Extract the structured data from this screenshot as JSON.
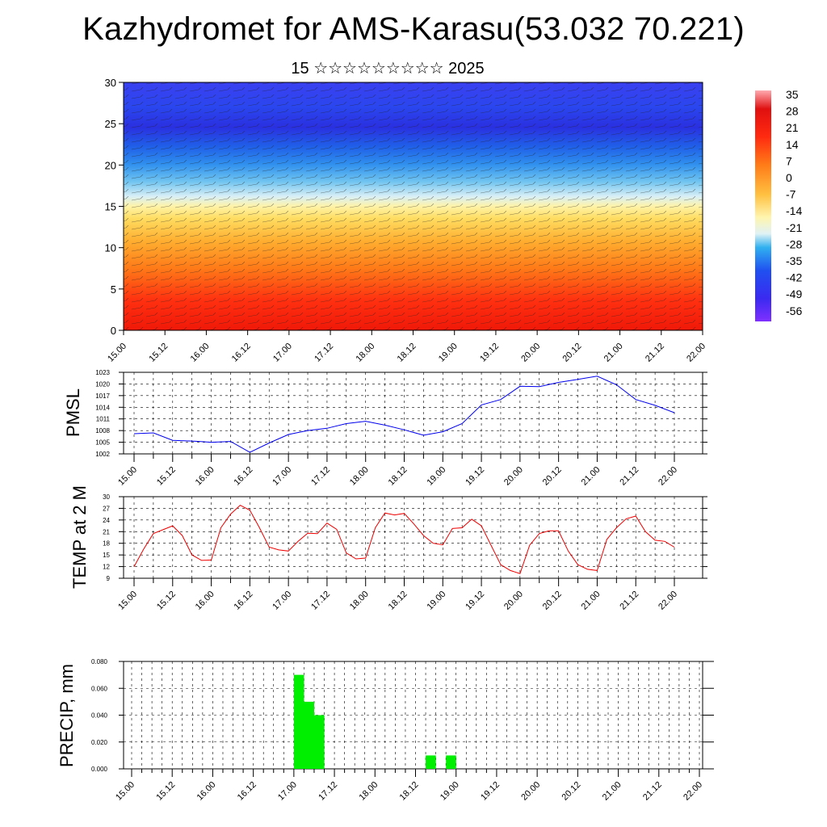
{
  "header": {
    "title": "Kazhydromet for AMS-Karasu(53.032 70.221)",
    "subtitle": "15 ☆☆☆☆☆☆☆☆☆ 2025"
  },
  "time_ticks": [
    "15.00",
    "15.12",
    "16.00",
    "16.12",
    "17.00",
    "17.12",
    "18.00",
    "18.12",
    "19.00",
    "19.12",
    "20.00",
    "20.12",
    "21.00",
    "21.12",
    "22.00"
  ],
  "colors": {
    "pmsl_line": "#0000ee",
    "temp_line": "#ee0000",
    "precip_bar": "#00ee00",
    "colorbar": [
      "#8030ff",
      "#3a2af0",
      "#2050f0",
      "#2a80f0",
      "#30b0f0",
      "#bfe6f5",
      "#fff5b0",
      "#ffe066",
      "#ffc040",
      "#ff9520",
      "#ff6010",
      "#ff2a10",
      "#e01010",
      "#ff9aa0"
    ]
  },
  "chart_data": [
    {
      "type": "heatmap",
      "title": "",
      "xlabel": "",
      "ylabel": "",
      "ylim": [
        0,
        30
      ],
      "yticks": [
        "0",
        "5",
        "10",
        "15",
        "20",
        "25",
        "30"
      ],
      "description_levels": "temperature shading with wind barbs",
      "colorbar_labels": [
        "35",
        "28",
        "21",
        "14",
        "7",
        "0",
        "-7",
        "-14",
        "-21",
        "-28",
        "-35",
        "-42",
        "-49",
        "-56"
      ]
    },
    {
      "type": "line",
      "ylabel": "PMSL",
      "ylim": [
        1002,
        1023
      ],
      "yticks": [
        "1002",
        "1005",
        "1008",
        "1011",
        "1014",
        "1017",
        "1020",
        "1023"
      ],
      "x": [
        "15.00",
        "15.06",
        "15.12",
        "15.18",
        "16.00",
        "16.06",
        "16.12",
        "16.18",
        "17.00",
        "17.06",
        "17.12",
        "17.18",
        "18.00",
        "18.06",
        "18.12",
        "18.18",
        "19.00",
        "19.06",
        "19.12",
        "19.18",
        "20.00",
        "20.06",
        "20.12",
        "20.18",
        "21.00",
        "21.06",
        "21.12",
        "21.18",
        "22.00"
      ],
      "series": [
        {
          "values": [
            1007.2,
            1007.4,
            1005.5,
            1005.3,
            1005.0,
            1005.2,
            1002.4,
            1004.8,
            1007.0,
            1008.0,
            1008.6,
            1009.8,
            1010.4,
            1009.4,
            1008.2,
            1006.8,
            1007.7,
            1009.8,
            1014.6,
            1016.0,
            1019.4,
            1019.3,
            1020.4,
            1021.2,
            1022.0,
            1019.8,
            1016.0,
            1014.5,
            1012.6
          ]
        }
      ]
    },
    {
      "type": "line",
      "ylabel": "TEMP at 2 M",
      "ylim": [
        9,
        30
      ],
      "yticks": [
        "9",
        "12",
        "15",
        "18",
        "21",
        "24",
        "27",
        "30"
      ],
      "x": [
        "15.00",
        "15.03",
        "15.06",
        "15.09",
        "15.12",
        "15.15",
        "15.18",
        "15.21",
        "16.00",
        "16.03",
        "16.06",
        "16.09",
        "16.12",
        "16.15",
        "16.18",
        "16.21",
        "17.00",
        "17.03",
        "17.06",
        "17.09",
        "17.12",
        "17.15",
        "17.18",
        "17.21",
        "18.00",
        "18.03",
        "18.06",
        "18.09",
        "18.12",
        "18.15",
        "18.18",
        "18.21",
        "19.00",
        "19.03",
        "19.06",
        "19.09",
        "19.12",
        "19.15",
        "19.18",
        "19.21",
        "20.00",
        "20.03",
        "20.06",
        "20.09",
        "20.12",
        "20.15",
        "20.18",
        "20.21",
        "21.00",
        "21.03",
        "21.06",
        "21.09",
        "21.12",
        "21.15",
        "21.18",
        "21.21",
        "22.00"
      ],
      "series": [
        {
          "values": [
            12.0,
            16.5,
            20.5,
            21.5,
            22.5,
            20.0,
            15.0,
            13.6,
            13.7,
            22.0,
            25.5,
            27.8,
            26.5,
            22.0,
            17.0,
            16.3,
            16.0,
            18.5,
            20.6,
            20.5,
            23.2,
            21.6,
            15.5,
            14.0,
            14.2,
            22.0,
            25.8,
            25.3,
            25.7,
            23.0,
            20.0,
            18.0,
            17.6,
            21.8,
            22.0,
            24.2,
            22.5,
            17.5,
            12.5,
            11.0,
            10.2,
            17.5,
            20.5,
            21.2,
            21.2,
            16.0,
            12.5,
            11.3,
            11.0,
            19.0,
            22.0,
            24.3,
            25.0,
            21.0,
            18.8,
            18.5,
            17.0
          ]
        }
      ]
    },
    {
      "type": "bar",
      "ylabel": "PRECIP, mm",
      "ylim": [
        0,
        0.08
      ],
      "yticks": [
        "0.000",
        "0.020",
        "0.040",
        "0.060",
        "0.080"
      ],
      "categories": [
        "17.00",
        "17.03",
        "17.06",
        "18.15",
        "18.21"
      ],
      "values": [
        0.07,
        0.05,
        0.04,
        0.01,
        0.01
      ]
    }
  ]
}
